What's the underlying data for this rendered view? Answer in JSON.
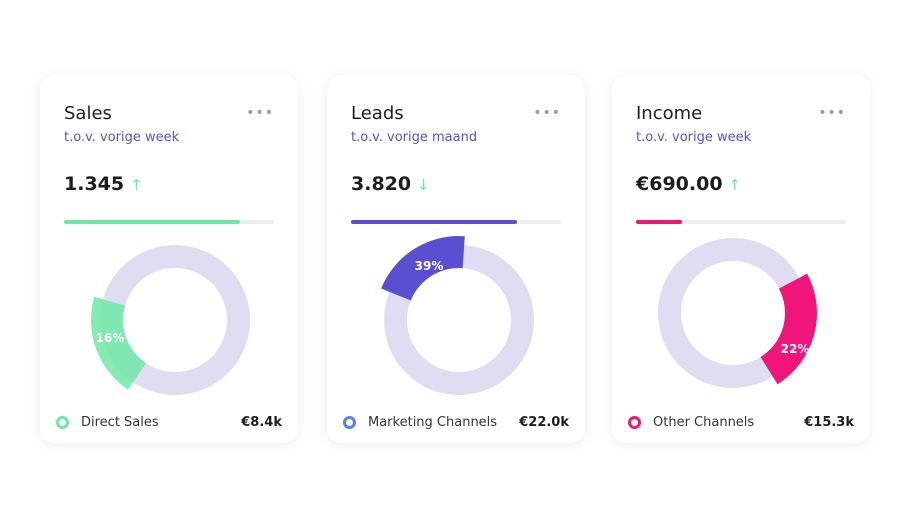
{
  "cards": [
    {
      "title": "Sales",
      "subtitle": "t.o.v. vorige week",
      "value": "1.345",
      "arrow": "↑",
      "trend": "up",
      "progress": 84,
      "color": "#6ee7a6",
      "segment_pct": 16,
      "segment_label": "16%",
      "legend": "Direct Sales",
      "amount": "€8.4k"
    },
    {
      "title": "Leads",
      "subtitle": "t.o.v. vorige maand",
      "value": "3.820",
      "arrow": "↓",
      "trend": "down",
      "progress": 79,
      "color": "#5b4fd1",
      "legend_color": "#5b7ff0",
      "segment_pct": 39,
      "segment_label": "39%",
      "legend": "Marketing Channels",
      "amount": "€22.0k"
    },
    {
      "title": "Income",
      "subtitle": "t.o.v. vorige week",
      "value": "€690.00",
      "arrow": "↑",
      "trend": "up",
      "progress": 22,
      "color": "#f0157a",
      "segment_pct": 22,
      "segment_label": "22%",
      "legend": "Other Channels",
      "amount": "€15.3k"
    }
  ],
  "menu_icon": "•••",
  "colors": {
    "ring": "#e0ddf3",
    "up": "#6ee7a6",
    "down": "#6ee7a6"
  },
  "chart_data": [
    {
      "type": "pie",
      "title": "Sales",
      "slices": [
        {
          "label": "Direct Sales",
          "value": 16
        },
        {
          "label": "Other",
          "value": 84
        }
      ]
    },
    {
      "type": "pie",
      "title": "Leads",
      "slices": [
        {
          "label": "Marketing Channels",
          "value": 39
        },
        {
          "label": "Other",
          "value": 61
        }
      ]
    },
    {
      "type": "pie",
      "title": "Income",
      "slices": [
        {
          "label": "Other Channels",
          "value": 22
        },
        {
          "label": "Other",
          "value": 78
        }
      ]
    }
  ]
}
